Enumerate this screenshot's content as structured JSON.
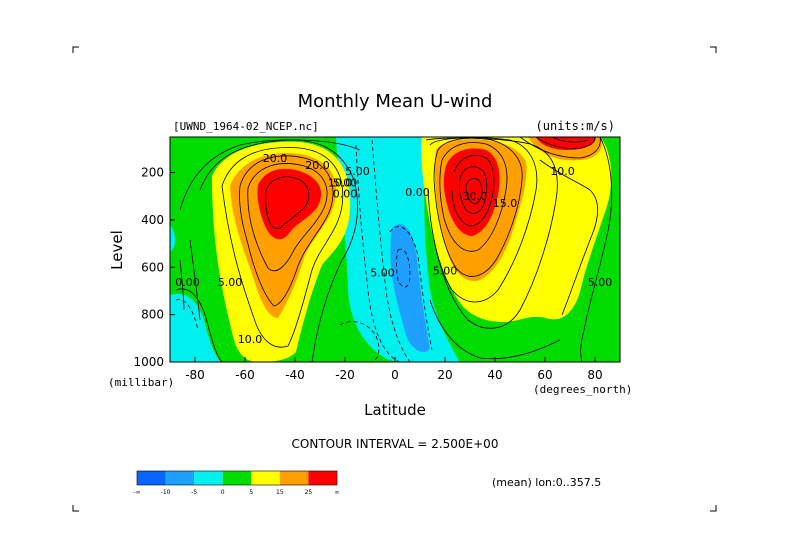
{
  "chart_data": {
    "type": "heatmap",
    "title": "Monthly Mean U-wind",
    "dataset_label": "[UWND_1964-02_NCEP.nc]",
    "units_label": "(units:m/s)",
    "xlabel": "Latitude",
    "x_units_label": "(degrees_north)",
    "ylabel": "Level",
    "y_units_label": "(millibar)",
    "xlim": [
      -90,
      90
    ],
    "ylim": [
      1000,
      50
    ],
    "x_ticks": [
      -80,
      -60,
      -40,
      -20,
      0,
      20,
      40,
      60,
      80
    ],
    "y_ticks": [
      200,
      400,
      600,
      800,
      1000
    ],
    "contour_interval_label": "CONTOUR INTERVAL = 2.500E+00",
    "average_label": "(mean) lon:0..357.5",
    "colorbar": {
      "colors": [
        "#0a64ff",
        "#1ea0ff",
        "#00f0f0",
        "#00dc00",
        "#ffff00",
        "#ff9f00",
        "#ff0000"
      ],
      "tick_labels": [
        "-∞",
        "-10",
        "-5",
        "0",
        "5",
        "15",
        "25",
        "∞"
      ]
    },
    "contour_labels": [
      {
        "text": "20.0",
        "lat": -48,
        "p": 155
      },
      {
        "text": "20.0",
        "lat": -31,
        "p": 185
      },
      {
        "text": "10.0",
        "lat": -22,
        "p": 260
      },
      {
        "text": "5.00",
        "lat": -15,
        "p": 210
      },
      {
        "text": "5.00",
        "lat": -20,
        "p": 260
      },
      {
        "text": "0.00",
        "lat": -20,
        "p": 305
      },
      {
        "text": "0.00",
        "lat": 9,
        "p": 300
      },
      {
        "text": "5.00",
        "lat": -5,
        "p": 640
      },
      {
        "text": "0.00",
        "lat": -83,
        "p": 680
      },
      {
        "text": "5.00",
        "lat": -66,
        "p": 680
      },
      {
        "text": "10.0",
        "lat": -58,
        "p": 920
      },
      {
        "text": "5.00",
        "lat": 20,
        "p": 630
      },
      {
        "text": "30.0",
        "lat": 32,
        "p": 315
      },
      {
        "text": "15.0",
        "lat": 44,
        "p": 345
      },
      {
        "text": "10.0",
        "lat": 67,
        "p": 210
      },
      {
        "text": "5.00",
        "lat": 82,
        "p": 680
      }
    ]
  }
}
